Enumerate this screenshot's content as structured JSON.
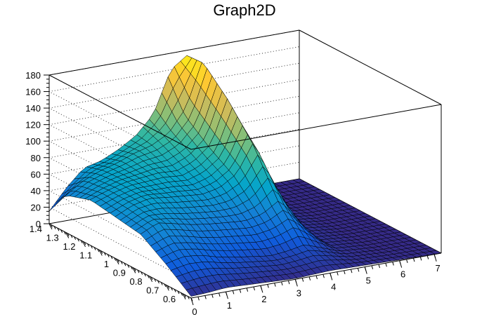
{
  "chart_data": {
    "type": "surface",
    "title": "Graph2D",
    "xlabel": "",
    "ylabel": "",
    "zlabel": "",
    "xlim": [
      0,
      7.2
    ],
    "ylim": [
      0.55,
      1.4
    ],
    "zlim": [
      0,
      180
    ],
    "x_ticks": [
      "0",
      "1",
      "2",
      "3",
      "4",
      "5",
      "6",
      "7"
    ],
    "y_ticks": [
      "1.4",
      "1.3",
      "1.2",
      "1.1",
      "1",
      "0.9",
      "0.8",
      "0.7",
      "0.6"
    ],
    "z_ticks": [
      "0",
      "20",
      "40",
      "60",
      "80",
      "100",
      "120",
      "140",
      "160",
      "180"
    ],
    "grid": true,
    "colormap": [
      "#352a87",
      "#0f5cdd",
      "#1481d6",
      "#06a4ca",
      "#2eb7a4",
      "#87bf77",
      "#d1bb59",
      "#fec832",
      "#f9fb0e"
    ],
    "grid_x": [
      0,
      0.5,
      1,
      1.5,
      2,
      2.5,
      3,
      3.5,
      4,
      5,
      6,
      7.2
    ],
    "grid_y": [
      0.55,
      0.7,
      0.85,
      1.0,
      1.15,
      1.3,
      1.4
    ],
    "z": [
      [
        2,
        3,
        5,
        4,
        3,
        2,
        1,
        2,
        3,
        2,
        1,
        0
      ],
      [
        25,
        30,
        28,
        22,
        18,
        15,
        12,
        14,
        18,
        3,
        0,
        0
      ],
      [
        45,
        55,
        50,
        45,
        42,
        40,
        38,
        42,
        55,
        4,
        0,
        0
      ],
      [
        50,
        60,
        65,
        62,
        60,
        58,
        62,
        75,
        110,
        5,
        0,
        0
      ],
      [
        55,
        62,
        68,
        70,
        72,
        70,
        78,
        95,
        150,
        6,
        0,
        0
      ],
      [
        45,
        58,
        66,
        72,
        80,
        85,
        95,
        120,
        180,
        8,
        0,
        0
      ],
      [
        15,
        40,
        60,
        65,
        75,
        88,
        110,
        160,
        175,
        6,
        0,
        0
      ]
    ]
  }
}
